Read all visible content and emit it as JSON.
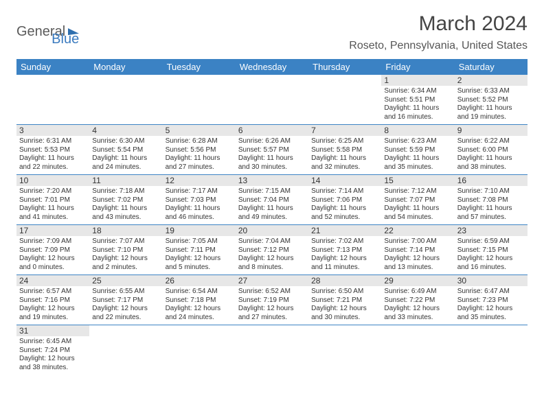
{
  "logo": {
    "part1": "General",
    "part2": "Blue"
  },
  "title": "March 2024",
  "location": "Roseto, Pennsylvania, United States",
  "colors": {
    "header_bg": "#3b82c4",
    "header_fg": "#ffffff",
    "daynum_bg": "#e7e7e7",
    "rule": "#3b82c4"
  },
  "day_headers": [
    "Sunday",
    "Monday",
    "Tuesday",
    "Wednesday",
    "Thursday",
    "Friday",
    "Saturday"
  ],
  "weeks": [
    [
      null,
      null,
      null,
      null,
      null,
      {
        "d": "1",
        "sr": "Sunrise: 6:34 AM",
        "ss": "Sunset: 5:51 PM",
        "dl1": "Daylight: 11 hours",
        "dl2": "and 16 minutes."
      },
      {
        "d": "2",
        "sr": "Sunrise: 6:33 AM",
        "ss": "Sunset: 5:52 PM",
        "dl1": "Daylight: 11 hours",
        "dl2": "and 19 minutes."
      }
    ],
    [
      {
        "d": "3",
        "sr": "Sunrise: 6:31 AM",
        "ss": "Sunset: 5:53 PM",
        "dl1": "Daylight: 11 hours",
        "dl2": "and 22 minutes."
      },
      {
        "d": "4",
        "sr": "Sunrise: 6:30 AM",
        "ss": "Sunset: 5:54 PM",
        "dl1": "Daylight: 11 hours",
        "dl2": "and 24 minutes."
      },
      {
        "d": "5",
        "sr": "Sunrise: 6:28 AM",
        "ss": "Sunset: 5:56 PM",
        "dl1": "Daylight: 11 hours",
        "dl2": "and 27 minutes."
      },
      {
        "d": "6",
        "sr": "Sunrise: 6:26 AM",
        "ss": "Sunset: 5:57 PM",
        "dl1": "Daylight: 11 hours",
        "dl2": "and 30 minutes."
      },
      {
        "d": "7",
        "sr": "Sunrise: 6:25 AM",
        "ss": "Sunset: 5:58 PM",
        "dl1": "Daylight: 11 hours",
        "dl2": "and 32 minutes."
      },
      {
        "d": "8",
        "sr": "Sunrise: 6:23 AM",
        "ss": "Sunset: 5:59 PM",
        "dl1": "Daylight: 11 hours",
        "dl2": "and 35 minutes."
      },
      {
        "d": "9",
        "sr": "Sunrise: 6:22 AM",
        "ss": "Sunset: 6:00 PM",
        "dl1": "Daylight: 11 hours",
        "dl2": "and 38 minutes."
      }
    ],
    [
      {
        "d": "10",
        "sr": "Sunrise: 7:20 AM",
        "ss": "Sunset: 7:01 PM",
        "dl1": "Daylight: 11 hours",
        "dl2": "and 41 minutes."
      },
      {
        "d": "11",
        "sr": "Sunrise: 7:18 AM",
        "ss": "Sunset: 7:02 PM",
        "dl1": "Daylight: 11 hours",
        "dl2": "and 43 minutes."
      },
      {
        "d": "12",
        "sr": "Sunrise: 7:17 AM",
        "ss": "Sunset: 7:03 PM",
        "dl1": "Daylight: 11 hours",
        "dl2": "and 46 minutes."
      },
      {
        "d": "13",
        "sr": "Sunrise: 7:15 AM",
        "ss": "Sunset: 7:04 PM",
        "dl1": "Daylight: 11 hours",
        "dl2": "and 49 minutes."
      },
      {
        "d": "14",
        "sr": "Sunrise: 7:14 AM",
        "ss": "Sunset: 7:06 PM",
        "dl1": "Daylight: 11 hours",
        "dl2": "and 52 minutes."
      },
      {
        "d": "15",
        "sr": "Sunrise: 7:12 AM",
        "ss": "Sunset: 7:07 PM",
        "dl1": "Daylight: 11 hours",
        "dl2": "and 54 minutes."
      },
      {
        "d": "16",
        "sr": "Sunrise: 7:10 AM",
        "ss": "Sunset: 7:08 PM",
        "dl1": "Daylight: 11 hours",
        "dl2": "and 57 minutes."
      }
    ],
    [
      {
        "d": "17",
        "sr": "Sunrise: 7:09 AM",
        "ss": "Sunset: 7:09 PM",
        "dl1": "Daylight: 12 hours",
        "dl2": "and 0 minutes."
      },
      {
        "d": "18",
        "sr": "Sunrise: 7:07 AM",
        "ss": "Sunset: 7:10 PM",
        "dl1": "Daylight: 12 hours",
        "dl2": "and 2 minutes."
      },
      {
        "d": "19",
        "sr": "Sunrise: 7:05 AM",
        "ss": "Sunset: 7:11 PM",
        "dl1": "Daylight: 12 hours",
        "dl2": "and 5 minutes."
      },
      {
        "d": "20",
        "sr": "Sunrise: 7:04 AM",
        "ss": "Sunset: 7:12 PM",
        "dl1": "Daylight: 12 hours",
        "dl2": "and 8 minutes."
      },
      {
        "d": "21",
        "sr": "Sunrise: 7:02 AM",
        "ss": "Sunset: 7:13 PM",
        "dl1": "Daylight: 12 hours",
        "dl2": "and 11 minutes."
      },
      {
        "d": "22",
        "sr": "Sunrise: 7:00 AM",
        "ss": "Sunset: 7:14 PM",
        "dl1": "Daylight: 12 hours",
        "dl2": "and 13 minutes."
      },
      {
        "d": "23",
        "sr": "Sunrise: 6:59 AM",
        "ss": "Sunset: 7:15 PM",
        "dl1": "Daylight: 12 hours",
        "dl2": "and 16 minutes."
      }
    ],
    [
      {
        "d": "24",
        "sr": "Sunrise: 6:57 AM",
        "ss": "Sunset: 7:16 PM",
        "dl1": "Daylight: 12 hours",
        "dl2": "and 19 minutes."
      },
      {
        "d": "25",
        "sr": "Sunrise: 6:55 AM",
        "ss": "Sunset: 7:17 PM",
        "dl1": "Daylight: 12 hours",
        "dl2": "and 22 minutes."
      },
      {
        "d": "26",
        "sr": "Sunrise: 6:54 AM",
        "ss": "Sunset: 7:18 PM",
        "dl1": "Daylight: 12 hours",
        "dl2": "and 24 minutes."
      },
      {
        "d": "27",
        "sr": "Sunrise: 6:52 AM",
        "ss": "Sunset: 7:19 PM",
        "dl1": "Daylight: 12 hours",
        "dl2": "and 27 minutes."
      },
      {
        "d": "28",
        "sr": "Sunrise: 6:50 AM",
        "ss": "Sunset: 7:21 PM",
        "dl1": "Daylight: 12 hours",
        "dl2": "and 30 minutes."
      },
      {
        "d": "29",
        "sr": "Sunrise: 6:49 AM",
        "ss": "Sunset: 7:22 PM",
        "dl1": "Daylight: 12 hours",
        "dl2": "and 33 minutes."
      },
      {
        "d": "30",
        "sr": "Sunrise: 6:47 AM",
        "ss": "Sunset: 7:23 PM",
        "dl1": "Daylight: 12 hours",
        "dl2": "and 35 minutes."
      }
    ],
    [
      {
        "d": "31",
        "sr": "Sunrise: 6:45 AM",
        "ss": "Sunset: 7:24 PM",
        "dl1": "Daylight: 12 hours",
        "dl2": "and 38 minutes."
      },
      null,
      null,
      null,
      null,
      null,
      null
    ]
  ]
}
